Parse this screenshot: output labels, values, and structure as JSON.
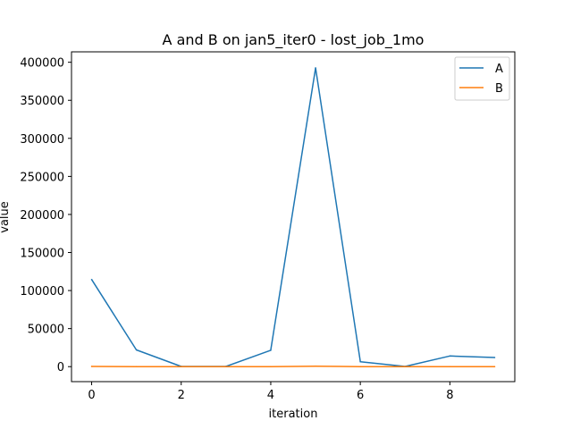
{
  "chart_data": {
    "type": "line",
    "title": "A and B on jan5_iter0 - lost_job_1mo",
    "xlabel": "iteration",
    "ylabel": "value",
    "x": [
      0,
      1,
      2,
      3,
      4,
      5,
      6,
      7,
      8,
      9
    ],
    "xlim": [
      -0.45,
      9.45
    ],
    "ylim": [
      -19700,
      413700
    ],
    "xticks": [
      0,
      2,
      4,
      6,
      8
    ],
    "yticks": [
      0,
      50000,
      100000,
      150000,
      200000,
      250000,
      300000,
      350000,
      400000
    ],
    "grid": false,
    "legend_position": "top-right",
    "series": [
      {
        "name": "A",
        "color": "#1f77b4",
        "values": [
          114500,
          22000,
          300,
          300,
          21500,
          392500,
          6500,
          300,
          14000,
          12000
        ]
      },
      {
        "name": "B",
        "color": "#ff7f0e",
        "values": [
          300,
          0,
          0,
          0,
          0,
          600,
          0,
          0,
          0,
          0
        ]
      }
    ]
  }
}
